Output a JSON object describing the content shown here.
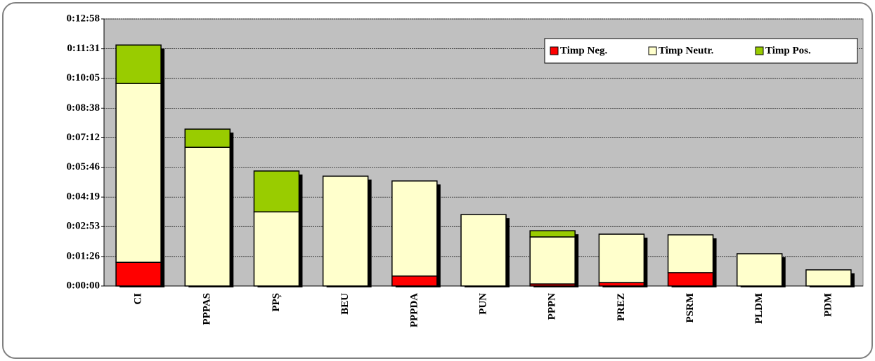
{
  "chart_data": {
    "type": "stacked_bar",
    "categories": [
      "CI",
      "PPPAS",
      "PPȘ",
      "BEU",
      "PPPDA",
      "PUN",
      "PPPN",
      "PREZ",
      "PSRM",
      "PLDM",
      "PDM"
    ],
    "series": [
      {
        "name": "Timp Neg.",
        "color": "#ff0000",
        "values": [
          69,
          0,
          0,
          0,
          29,
          0,
          6,
          10,
          39,
          0,
          0
        ]
      },
      {
        "name": "Timp Neutr.",
        "color": "#ffffcc",
        "values": [
          521,
          404,
          216,
          320,
          277,
          208,
          137,
          141,
          110,
          94,
          47
        ]
      },
      {
        "name": "Timp Pos.",
        "color": "#99cc00",
        "values": [
          112,
          53,
          119,
          0,
          0,
          0,
          18,
          0,
          0,
          0,
          0
        ]
      }
    ],
    "ylim": [
      0,
      778
    ],
    "yticks": [
      {
        "value": 0,
        "label": "0:00:00"
      },
      {
        "value": 86,
        "label": "0:01:26"
      },
      {
        "value": 173,
        "label": "0:02:53"
      },
      {
        "value": 259,
        "label": "0:04:19"
      },
      {
        "value": 346,
        "label": "0:05:46"
      },
      {
        "value": 432,
        "label": "0:07:12"
      },
      {
        "value": 518,
        "label": "0:08:38"
      },
      {
        "value": 605,
        "label": "0:10:05"
      },
      {
        "value": 691,
        "label": "0:11:31"
      },
      {
        "value": 778,
        "label": "0:12:58"
      }
    ],
    "grid": true,
    "legend": "upper right",
    "plot_background": "#c0c0c0"
  }
}
